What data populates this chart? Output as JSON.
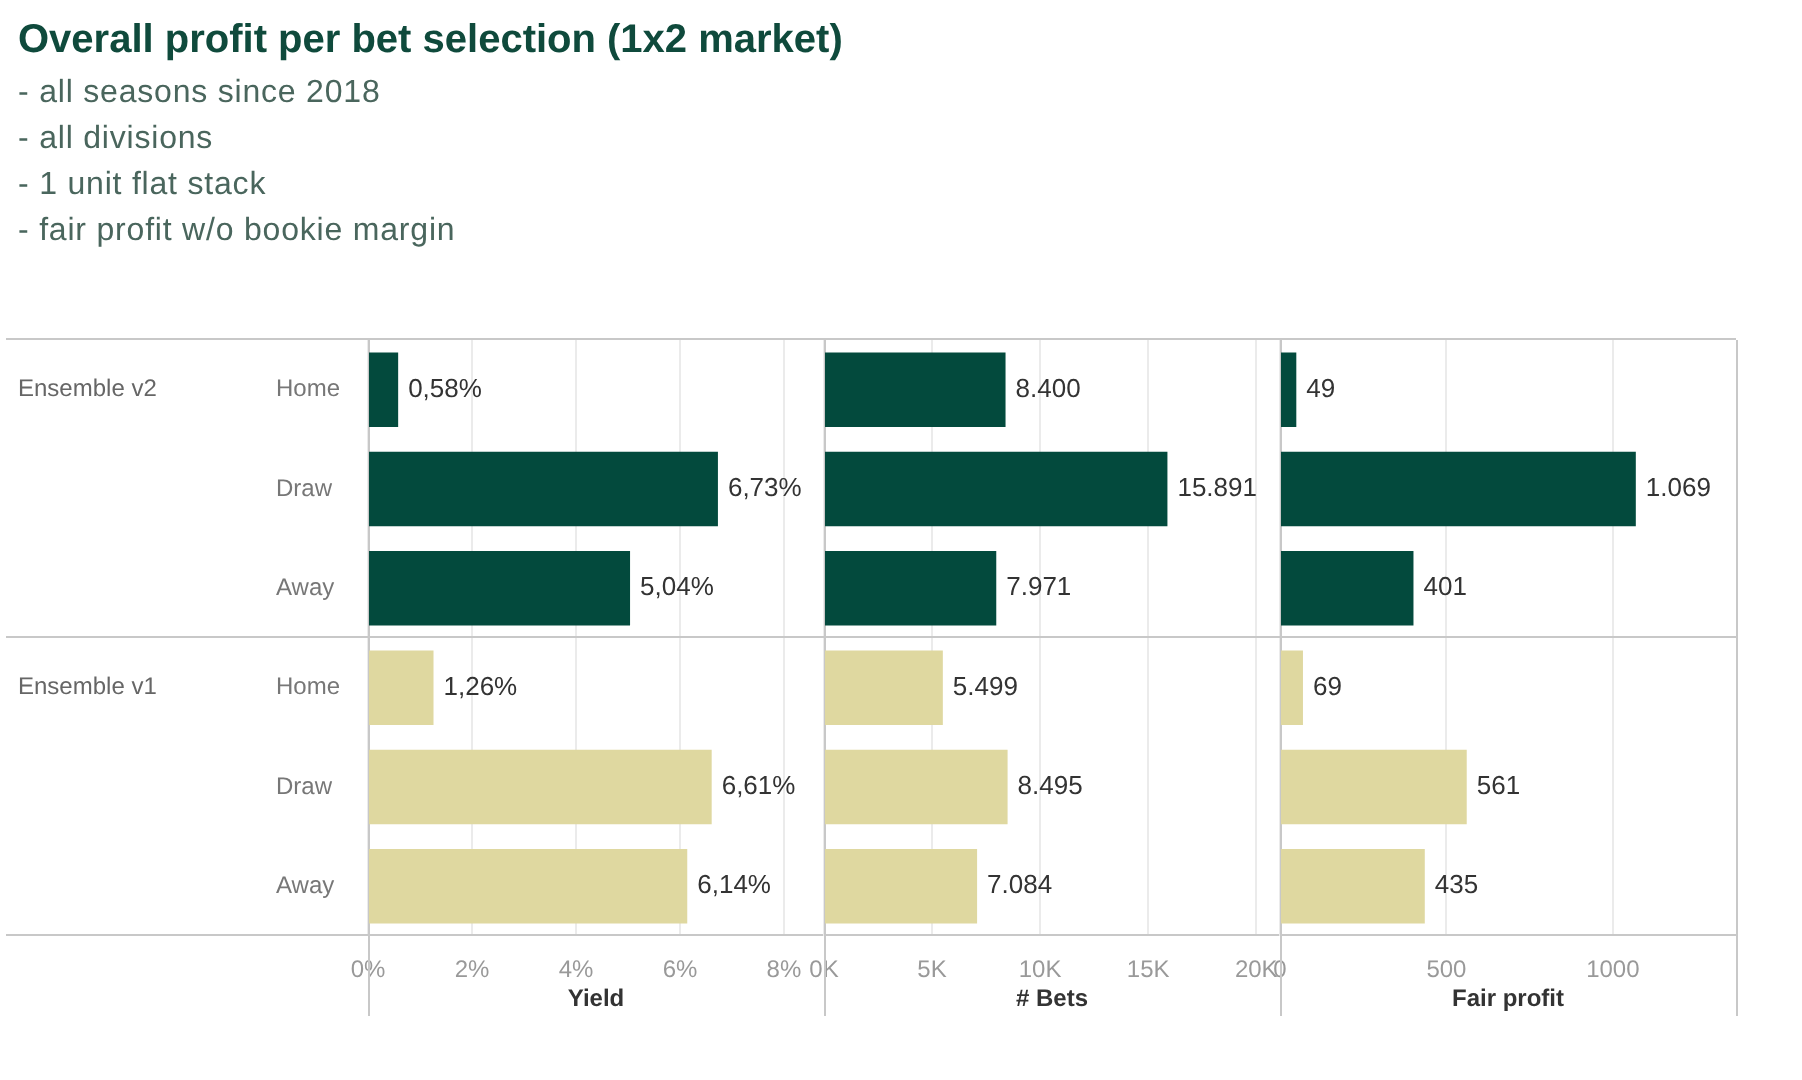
{
  "chart_data": [
    {
      "type": "bar",
      "orientation": "horizontal",
      "title": "Overall profit per bet selection (1x2 market)",
      "subtitle": "- all seasons since 2018\n- all divisions\n- 1 unit flat stack\n- fair profit w/o bookie margin",
      "annotations": [
        "Ensemble v2"
      ],
      "categories": [
        "Home",
        "Draw",
        "Away"
      ],
      "values": [
        0.58,
        6.73,
        5.04
      ],
      "value_labels": [
        "0,58%",
        "6,73%",
        "5,04%"
      ],
      "color": "#034a3d",
      "xlim": [
        0,
        8.77
      ],
      "xticks": [
        0,
        2,
        4,
        6,
        8
      ],
      "grid": "x",
      "tick_labels": "y"
    },
    {
      "type": "bar",
      "orientation": "horizontal",
      "categories": [
        null,
        null,
        null
      ],
      "values": [
        8400,
        15891,
        7971
      ],
      "value_labels": [
        "8.400",
        "15.891",
        "7.971"
      ],
      "color": "#034a3d",
      "xlim": [
        0,
        21100
      ],
      "xticks": [
        0,
        5000,
        10000,
        15000,
        20000
      ],
      "grid": "x",
      "tick_labels": false
    },
    {
      "type": "bar",
      "orientation": "horizontal",
      "categories": [
        null,
        null,
        null
      ],
      "values": [
        49,
        1069,
        401
      ],
      "value_labels": [
        "49",
        "1.069",
        "401"
      ],
      "color": "#034a3d",
      "xlim": [
        0,
        1370
      ],
      "xticks": [
        0,
        500,
        1000
      ],
      "grid": "x",
      "tick_labels": false
    },
    {
      "type": "bar",
      "orientation": "horizontal",
      "xlabel": "Yield",
      "annotations": [
        "Ensemble v1"
      ],
      "categories": [
        "Home",
        "Draw",
        "Away"
      ],
      "values": [
        1.26,
        6.61,
        6.14
      ],
      "value_labels": [
        "1,26%",
        "6,61%",
        "6,14%"
      ],
      "color": "#dfd8a0",
      "xlim": [
        0,
        8.77
      ],
      "xticks": [
        {
          "value": 0,
          "label": "0%"
        },
        {
          "value": 2,
          "label": "2%"
        },
        {
          "value": 4,
          "label": "4%"
        },
        {
          "value": 6,
          "label": "6%"
        },
        {
          "value": 8,
          "label": "8%"
        }
      ],
      "grid": "x"
    },
    {
      "type": "bar",
      "orientation": "horizontal",
      "xlabel": "# Bets",
      "categories": [
        null,
        null,
        null
      ],
      "values": [
        5499,
        8495,
        7084
      ],
      "value_labels": [
        "5.499",
        "8.495",
        "7.084"
      ],
      "color": "#dfd8a0",
      "xlim": [
        0,
        21100
      ],
      "xticks": [
        {
          "value": 0,
          "label": "0K"
        },
        {
          "value": 5000,
          "label": "5K"
        },
        {
          "value": 10000,
          "label": "10K"
        },
        {
          "value": 15000,
          "label": "15K"
        },
        {
          "value": 20000,
          "label": "20K"
        }
      ],
      "grid": "x",
      "tick_labels": "x"
    },
    {
      "type": "bar",
      "orientation": "horizontal",
      "xlabel": "Fair profit",
      "categories": [
        null,
        null,
        null
      ],
      "values": [
        69,
        561,
        435
      ],
      "value_labels": [
        "69",
        "561",
        "435"
      ],
      "color": "#dfd8a0",
      "xlim": [
        0,
        1370
      ],
      "xticks": [
        0,
        500,
        1000
      ],
      "grid": "x",
      "tick_labels": "x"
    }
  ]
}
